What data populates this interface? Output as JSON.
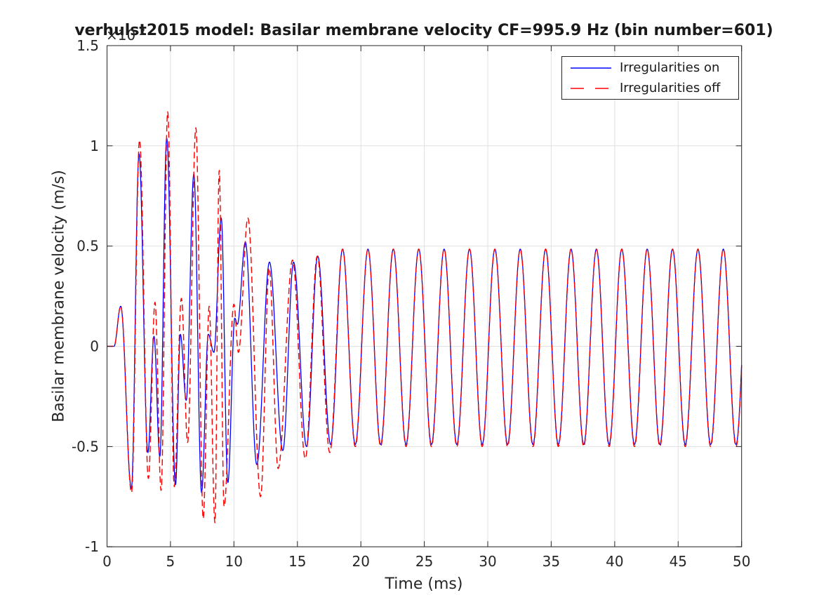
{
  "chart_data": {
    "type": "line",
    "title": "verhulst2015 model: Basilar membrane velocity CF=995.9 Hz (bin number=601)",
    "xlabel": "Time (ms)",
    "ylabel": "Basilar membrane velocity (m/s)",
    "y_offset": {
      "base": "×10",
      "exponent": "-2"
    },
    "xlim": [
      0,
      50
    ],
    "ylim": [
      -1,
      1.5
    ],
    "xticks": [
      0,
      5,
      10,
      15,
      20,
      25,
      30,
      35,
      40,
      45,
      50
    ],
    "xtick_labels": [
      "0",
      "5",
      "10",
      "15",
      "20",
      "25",
      "30",
      "35",
      "40",
      "45",
      "50"
    ],
    "yticks": [
      -1,
      -0.5,
      0,
      0.5,
      1,
      1.5
    ],
    "ytick_labels": [
      "-1",
      "-0.5",
      "0",
      "0.5",
      "1",
      "1.5"
    ],
    "grid": true,
    "legend": {
      "position": "top-right",
      "entries": [
        "Irregularities on",
        "Irregularities off"
      ]
    },
    "interpolation": "cosine_through_extrema",
    "sample_step_ms": 0.025,
    "colors": {
      "background": "#FFFFFF",
      "grid": "#E0E0E0",
      "axis": "#262626",
      "text": "#262626"
    },
    "series": [
      {
        "name": "Irregularities on",
        "color": "#0000FF",
        "linestyle": "solid",
        "line_width": 1.3,
        "extrema": [
          [
            0.0,
            0.0
          ],
          [
            0.55,
            0.0
          ],
          [
            1.08,
            0.2
          ],
          [
            1.92,
            -0.71
          ],
          [
            2.52,
            0.96
          ],
          [
            3.22,
            -0.53
          ],
          [
            3.7,
            0.05
          ],
          [
            4.16,
            -0.55
          ],
          [
            4.7,
            1.04
          ],
          [
            5.4,
            -0.69
          ],
          [
            5.78,
            0.06
          ],
          [
            6.24,
            -0.27
          ],
          [
            6.84,
            0.86
          ],
          [
            7.45,
            -0.73
          ],
          [
            7.98,
            0.06
          ],
          [
            8.42,
            -0.03
          ],
          [
            9.0,
            0.64
          ],
          [
            9.52,
            -0.68
          ],
          [
            10.07,
            0.14
          ],
          [
            10.27,
            0.11
          ],
          [
            10.9,
            0.52
          ],
          [
            11.8,
            -0.59
          ],
          [
            12.8,
            0.42
          ],
          [
            13.85,
            -0.52
          ],
          [
            14.7,
            0.42
          ],
          [
            15.72,
            -0.5
          ],
          [
            16.6,
            0.45
          ],
          [
            17.62,
            -0.49
          ]
        ],
        "steady_state": {
          "first_max_t": 18.56,
          "period": 2.0,
          "max_v": 0.485,
          "min_v": -0.49,
          "end_t": 50
        }
      },
      {
        "name": "Irregularities off",
        "color": "#FF0000",
        "linestyle": "dashed",
        "line_width": 1.45,
        "extrema": [
          [
            0.0,
            0.0
          ],
          [
            0.55,
            0.0
          ],
          [
            1.08,
            0.2
          ],
          [
            1.93,
            -0.73
          ],
          [
            2.56,
            1.03
          ],
          [
            3.26,
            -0.66
          ],
          [
            3.78,
            0.22
          ],
          [
            4.26,
            -0.72
          ],
          [
            4.78,
            1.17
          ],
          [
            5.3,
            -0.7
          ],
          [
            5.86,
            0.24
          ],
          [
            6.35,
            -0.48
          ],
          [
            7.0,
            1.09
          ],
          [
            7.58,
            -0.86
          ],
          [
            8.05,
            0.2
          ],
          [
            8.5,
            -0.88
          ],
          [
            8.84,
            0.88
          ],
          [
            9.22,
            -0.8
          ],
          [
            10.0,
            0.21
          ],
          [
            10.35,
            -0.03
          ],
          [
            11.1,
            0.64
          ],
          [
            12.1,
            -0.75
          ],
          [
            12.78,
            0.39
          ],
          [
            13.48,
            -0.61
          ],
          [
            14.62,
            0.43
          ],
          [
            15.62,
            -0.56
          ],
          [
            16.57,
            0.45
          ],
          [
            17.55,
            -0.53
          ]
        ],
        "steady_state": {
          "first_max_t": 18.56,
          "period": 2.0,
          "max_v": 0.485,
          "min_v": -0.5,
          "end_t": 50
        }
      }
    ]
  }
}
